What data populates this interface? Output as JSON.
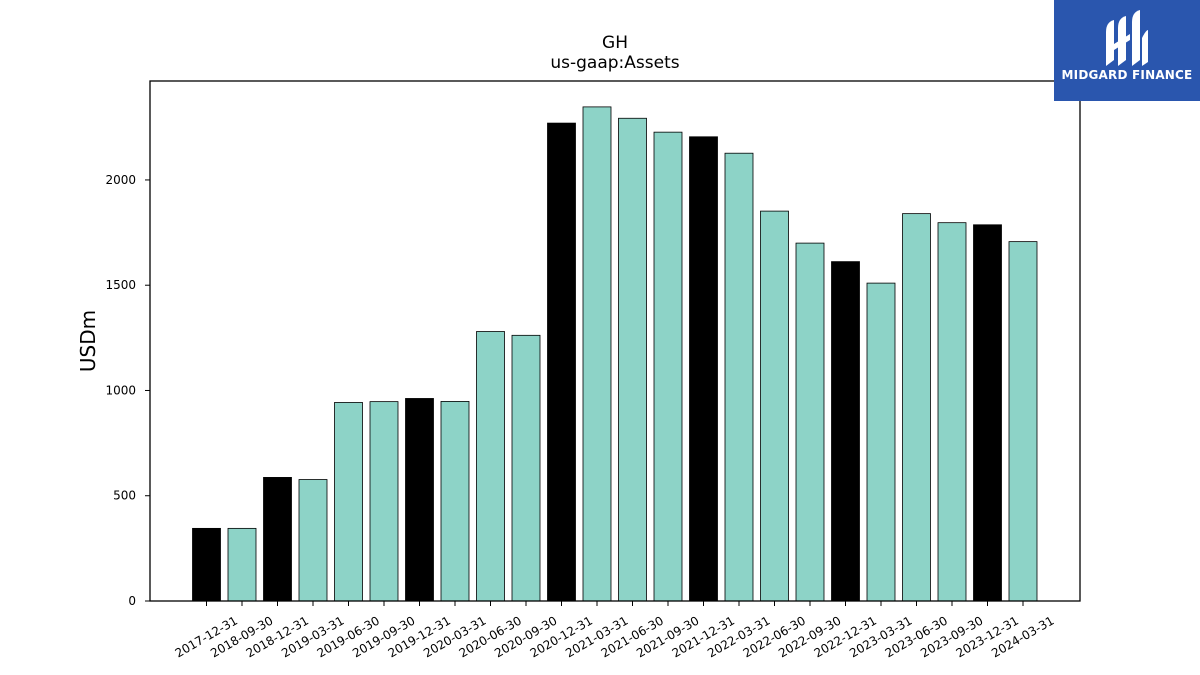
{
  "chart_data": {
    "type": "bar",
    "title": "GH",
    "subtitle": "us-gaap:Assets",
    "xlabel": "",
    "ylabel": "USDm",
    "ylim": [
      0,
      2470
    ],
    "yticks": [
      0,
      500,
      1000,
      1500,
      2000
    ],
    "categories": [
      "2017-12-31",
      "2018-09-30",
      "2018-12-31",
      "2019-03-31",
      "2019-06-30",
      "2019-09-30",
      "2019-12-31",
      "2020-03-31",
      "2020-06-30",
      "2020-09-30",
      "2020-12-31",
      "2021-03-31",
      "2021-06-30",
      "2021-09-30",
      "2021-12-31",
      "2022-03-31",
      "2022-06-30",
      "2022-09-30",
      "2022-12-31",
      "2023-03-31",
      "2023-06-30",
      "2023-09-30",
      "2023-12-31",
      "2024-03-31"
    ],
    "values": [
      345,
      345,
      587,
      577,
      943,
      947,
      962,
      948,
      1280,
      1262,
      2270,
      2347,
      2293,
      2227,
      2205,
      2127,
      1852,
      1700,
      1612,
      1510,
      1840,
      1797,
      1787,
      1707
    ],
    "bar_colors": [
      "#000000",
      "#8dd3c7",
      "#000000",
      "#8dd3c7",
      "#8dd3c7",
      "#8dd3c7",
      "#000000",
      "#8dd3c7",
      "#8dd3c7",
      "#8dd3c7",
      "#000000",
      "#8dd3c7",
      "#8dd3c7",
      "#8dd3c7",
      "#000000",
      "#8dd3c7",
      "#8dd3c7",
      "#8dd3c7",
      "#000000",
      "#8dd3c7",
      "#8dd3c7",
      "#8dd3c7",
      "#000000",
      "#8dd3c7"
    ],
    "grid": false,
    "legend": "none"
  },
  "logo": {
    "text": "MIDGARD FINANCE",
    "background": "#2a56ae"
  }
}
